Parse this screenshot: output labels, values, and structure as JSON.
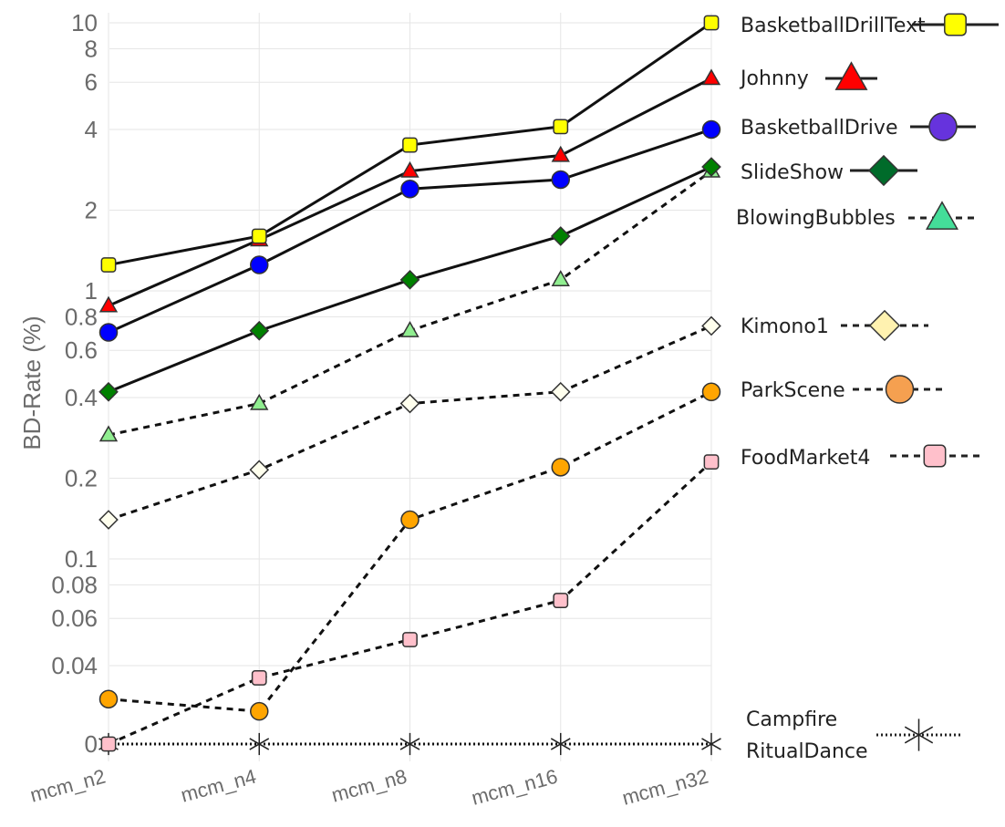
{
  "chart_data": {
    "type": "line",
    "ylabel": "BD-Rate (%)",
    "xlabel": "",
    "y_scale": "log, with zero baseline",
    "ylim": [
      0,
      10
    ],
    "grid": true,
    "legend_position": "right",
    "categories": [
      "mcm_n2",
      "mcm_n4",
      "mcm_n8",
      "mcm_n16",
      "mcm_n32"
    ],
    "y_ticks": [
      {
        "value": 10,
        "label": "10"
      },
      {
        "value": 8,
        "label": "8"
      },
      {
        "value": 6,
        "label": "6"
      },
      {
        "value": 4,
        "label": "4"
      },
      {
        "value": 2,
        "label": "2"
      },
      {
        "value": 1,
        "label": "1"
      },
      {
        "value": 0.8,
        "label": "0.8"
      },
      {
        "value": 0.6,
        "label": "0.6"
      },
      {
        "value": 0.4,
        "label": "0.4"
      },
      {
        "value": 0.2,
        "label": "0.2"
      },
      {
        "value": 0.1,
        "label": "0.1"
      },
      {
        "value": 0.08,
        "label": "0.08"
      },
      {
        "value": 0.06,
        "label": "0.06"
      },
      {
        "value": 0.04,
        "label": "0.04"
      },
      {
        "value": 0,
        "label": "0"
      }
    ],
    "series": [
      {
        "name": "BasketballDrillText",
        "label_lines": [
          "BasketballDrillText"
        ],
        "values": [
          1.25,
          1.6,
          3.5,
          4.1,
          10
        ],
        "marker": "square",
        "color": "#ffff00",
        "line": "solid"
      },
      {
        "name": "Johnny",
        "label_lines": [
          "Johnny"
        ],
        "values": [
          0.88,
          1.55,
          2.8,
          3.2,
          6.2
        ],
        "marker": "triangle",
        "color": "#ff0000",
        "line": "solid"
      },
      {
        "name": "BasketballDrive",
        "label_lines": [
          "BasketballDrive"
        ],
        "values": [
          0.7,
          1.25,
          2.4,
          2.6,
          4.0
        ],
        "marker": "circle",
        "color": "#0000ff",
        "legend_color": "#6633dd",
        "line": "solid"
      },
      {
        "name": "SlideShow",
        "label_lines": [
          "SlideShow"
        ],
        "values": [
          0.42,
          0.71,
          1.1,
          1.6,
          2.9
        ],
        "marker": "diamond",
        "color": "#008000",
        "legend_color": "#006b2a",
        "line": "solid"
      },
      {
        "name": "BlowingBubbles",
        "label_lines": [
          "BlowingBubbles"
        ],
        "values": [
          0.29,
          0.38,
          0.71,
          1.1,
          2.8
        ],
        "marker": "triangle",
        "color": "#90ee90",
        "legend_color": "#44dd99",
        "line": "dashed"
      },
      {
        "name": "Kimono1",
        "label_lines": [
          "Kimono1"
        ],
        "values": [
          0.14,
          0.215,
          0.38,
          0.42,
          0.74
        ],
        "marker": "diamond",
        "color": "#ffffee",
        "legend_color": "#fff2b0",
        "line": "dashed"
      },
      {
        "name": "ParkScene",
        "label_lines": [
          "ParkScene"
        ],
        "values": [
          0.03,
          0.027,
          0.14,
          0.22,
          0.42
        ],
        "marker": "circle",
        "color": "#ffa500",
        "legend_color": "#f5a050",
        "line": "dashed"
      },
      {
        "name": "FoodMarket4",
        "label_lines": [
          "FoodMarket4"
        ],
        "values": [
          0,
          0.036,
          0.05,
          0.07,
          0.23
        ],
        "marker": "square",
        "color": "#ffc0cb",
        "line": "dashed"
      },
      {
        "name": "Campfire RitualDance",
        "label_lines": [
          "Campfire",
          "RitualDance"
        ],
        "values": [
          0,
          0,
          0,
          0,
          0
        ],
        "marker": "asterisk",
        "color": "#000000",
        "line": "dotted"
      }
    ]
  }
}
